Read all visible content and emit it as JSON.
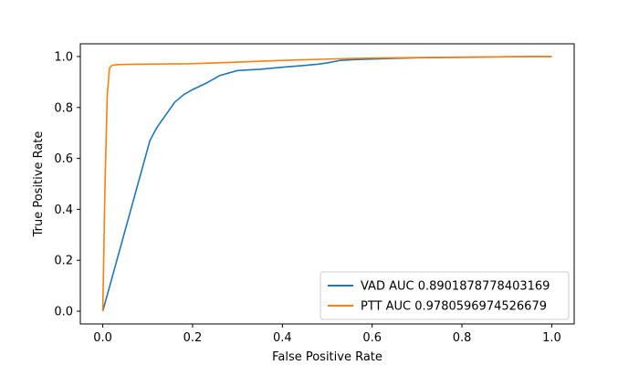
{
  "chart_data": {
    "type": "line",
    "title": "",
    "xlabel": "False Positive Rate",
    "ylabel": "True Positive Rate",
    "xlim": [
      -0.05,
      1.05
    ],
    "ylim": [
      -0.05,
      1.05
    ],
    "xticks": [
      0.0,
      0.2,
      0.4,
      0.6,
      0.8,
      1.0
    ],
    "yticks": [
      0.0,
      0.2,
      0.4,
      0.6,
      0.8,
      1.0
    ],
    "xtick_labels": [
      "0.0",
      "0.2",
      "0.4",
      "0.6",
      "0.8",
      "1.0"
    ],
    "ytick_labels": [
      "0.0",
      "0.2",
      "0.4",
      "0.6",
      "0.8",
      "1.0"
    ],
    "grid": false,
    "legend_position": "lower-right",
    "series": [
      {
        "name": "VAD AUC 0.8901878778403169",
        "color": "#1f77b4",
        "x": [
          0.0,
          0.105,
          0.12,
          0.14,
          0.16,
          0.18,
          0.2,
          0.23,
          0.26,
          0.3,
          0.35,
          0.4,
          0.45,
          0.48,
          0.5,
          0.53,
          0.56,
          0.6,
          0.65,
          0.7,
          0.8,
          0.9,
          1.0
        ],
        "y": [
          0.0,
          0.67,
          0.72,
          0.77,
          0.82,
          0.85,
          0.87,
          0.895,
          0.925,
          0.945,
          0.95,
          0.958,
          0.965,
          0.97,
          0.975,
          0.985,
          0.988,
          0.99,
          0.993,
          0.995,
          0.997,
          0.999,
          1.0
        ]
      },
      {
        "name": "PTT AUC 0.9780596974526679",
        "color": "#ff7f0e",
        "x": [
          0.0,
          0.005,
          0.01,
          0.015,
          0.02,
          0.03,
          0.05,
          0.1,
          0.2,
          0.3,
          0.4,
          0.5,
          0.6,
          0.7,
          0.8,
          0.9,
          1.0
        ],
        "y": [
          0.0,
          0.5,
          0.85,
          0.955,
          0.965,
          0.968,
          0.969,
          0.97,
          0.972,
          0.978,
          0.985,
          0.99,
          0.994,
          0.996,
          0.998,
          0.999,
          1.0
        ]
      }
    ]
  }
}
